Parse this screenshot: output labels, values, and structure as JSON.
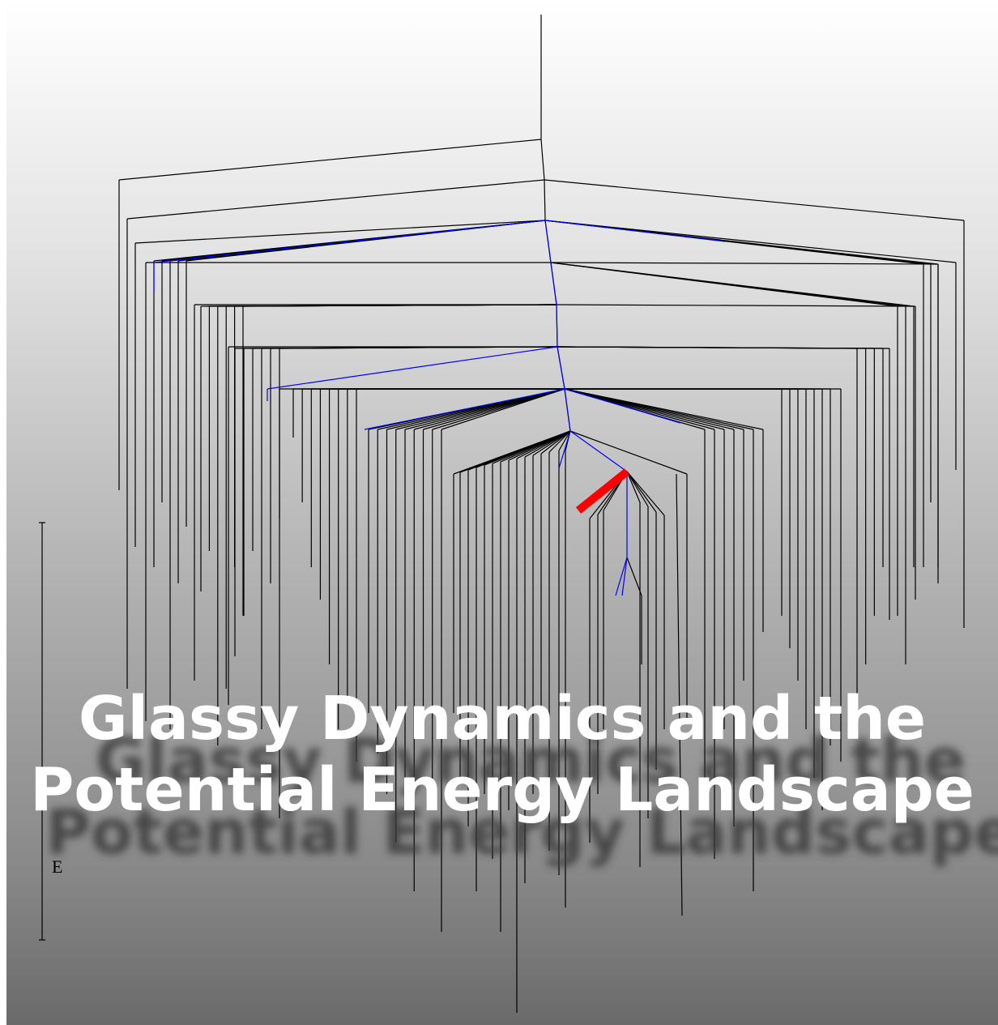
{
  "title": {
    "line1": "Glassy Dynamics and the",
    "line2": "Potential Energy Landscape"
  },
  "energy_axis": {
    "label": "E"
  },
  "colors": {
    "tree": "#000000",
    "pathway": "#0000ff",
    "highlight": "#ff0000",
    "title": "#ffffff",
    "background_top": "#ffffff",
    "background_bottom": "#6e6e6e"
  }
}
